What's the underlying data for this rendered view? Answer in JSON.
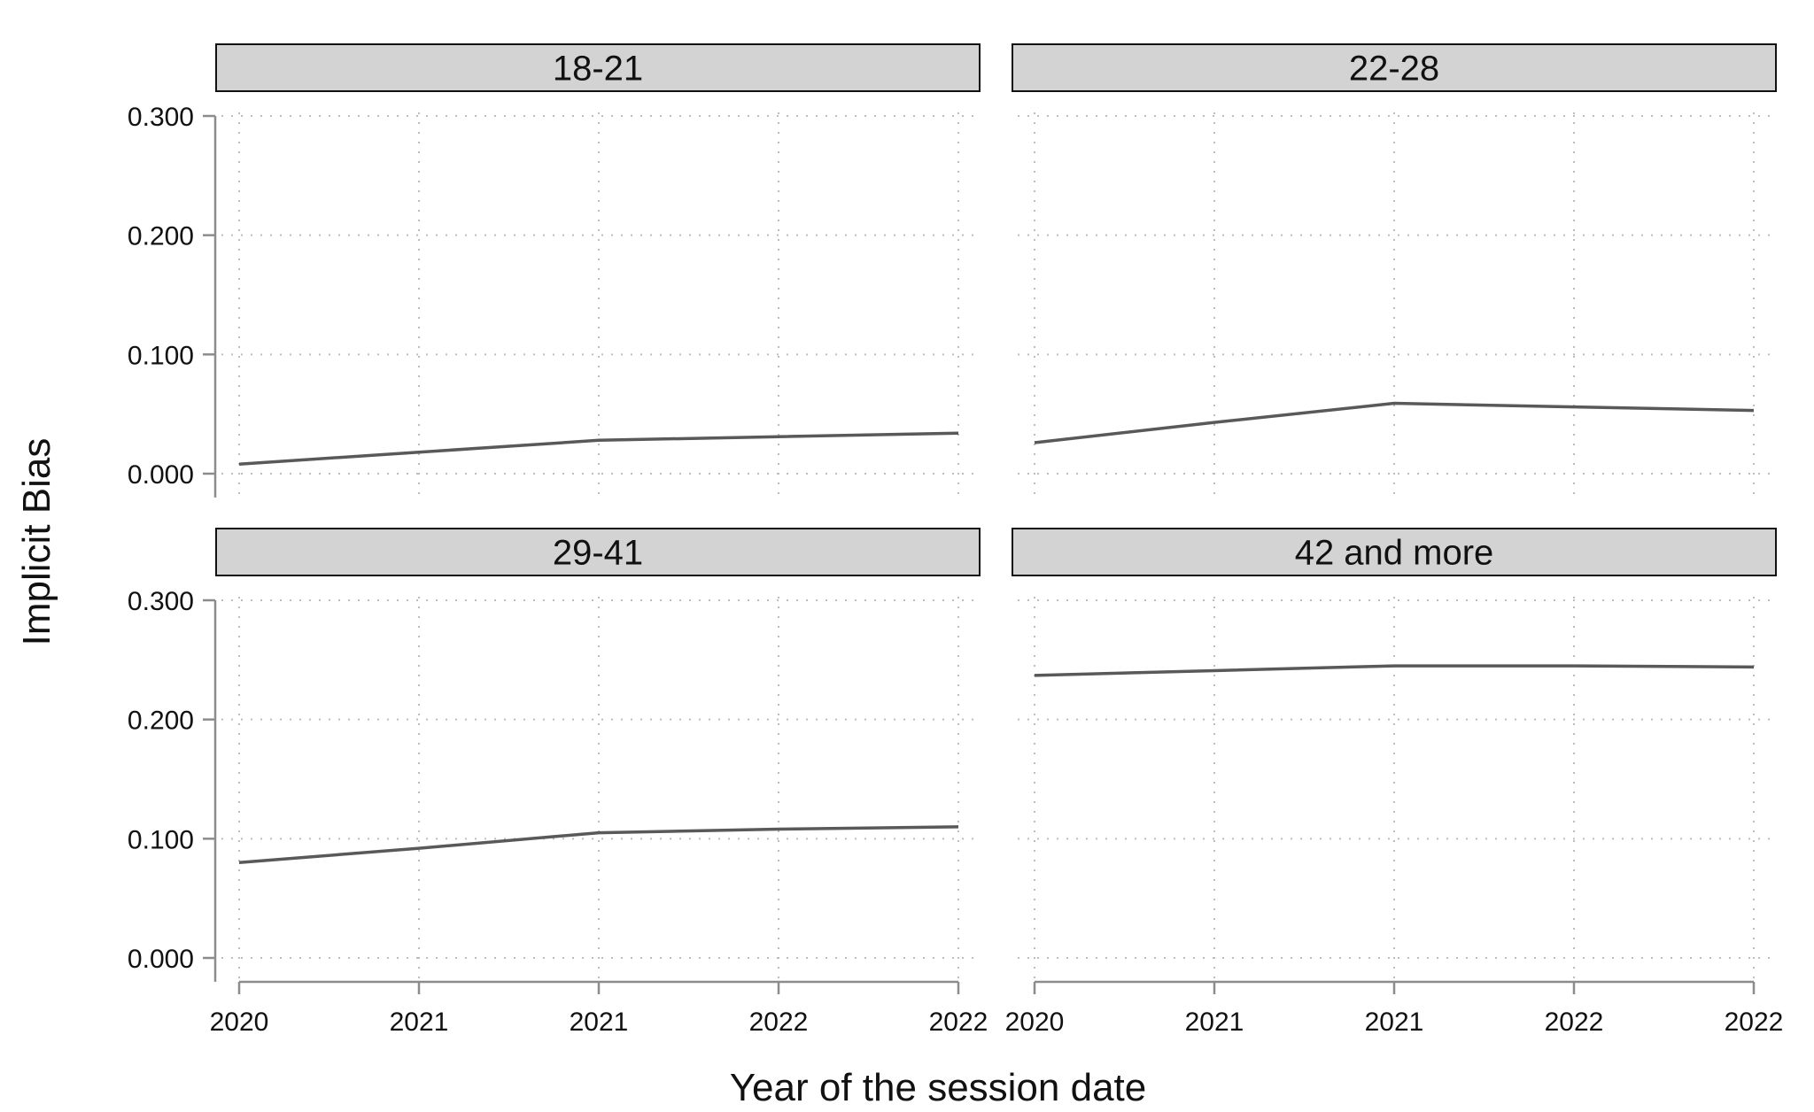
{
  "chart_data": {
    "type": "line",
    "xlabel": "Year of the session date",
    "ylabel": "Implicit Bias",
    "x_tick_labels": [
      "2020",
      "2021",
      "2021",
      "2022",
      "2022"
    ],
    "y_ticks": [
      "0.000",
      "0.100",
      "0.200",
      "0.300"
    ],
    "ylim": [
      -0.02,
      0.3
    ],
    "grid": true,
    "facets": [
      {
        "label": "18-21",
        "x": [
          0,
          1,
          2,
          3,
          4
        ],
        "values": [
          0.008,
          0.018,
          0.028,
          0.031,
          0.034
        ]
      },
      {
        "label": "22-28",
        "x": [
          0,
          1,
          2,
          3,
          4
        ],
        "values": [
          0.026,
          0.043,
          0.059,
          0.056,
          0.053
        ]
      },
      {
        "label": "29-41",
        "x": [
          0,
          1,
          2,
          3,
          4
        ],
        "values": [
          0.08,
          0.092,
          0.105,
          0.108,
          0.11
        ]
      },
      {
        "label": "42 and more",
        "x": [
          0,
          1,
          2,
          3,
          4
        ],
        "values": [
          0.237,
          0.241,
          0.245,
          0.245,
          0.244
        ]
      }
    ]
  }
}
